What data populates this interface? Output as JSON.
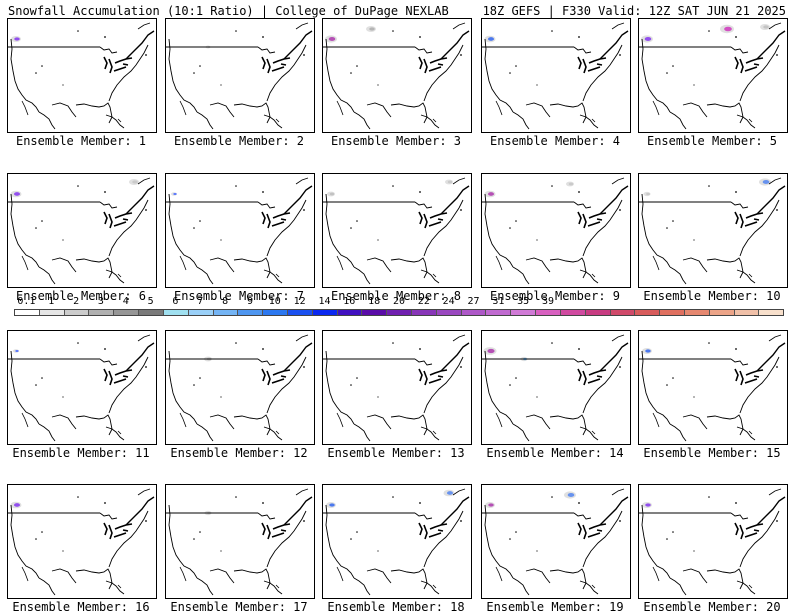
{
  "header": {
    "left": "Snowfall Accumulation (10:1 Ratio) | College of DuPage NEXLAB",
    "right": "18Z GEFS | F330 Valid: 12Z SAT JUN 21 2025"
  },
  "members": [
    {
      "label": "Ensemble Member: 1",
      "snow": [
        {
          "area": "pacific-northwest",
          "color": "#8a3ff0",
          "size": 1.0
        }
      ]
    },
    {
      "label": "Ensemble Member: 2",
      "snow": [
        {
          "area": "northern-rockies",
          "color": "#c8c8c8",
          "size": 0.5
        }
      ]
    },
    {
      "label": "Ensemble Member: 3",
      "snow": [
        {
          "area": "pacific-northwest",
          "color": "#b040b0",
          "size": 1.2
        },
        {
          "area": "canada-west",
          "color": "#b0b0b0",
          "size": 1.0
        }
      ]
    },
    {
      "label": "Ensemble Member: 4",
      "snow": [
        {
          "area": "pacific-northwest",
          "color": "#3c6ef0",
          "size": 1.1
        }
      ]
    },
    {
      "label": "Ensemble Member: 5",
      "snow": [
        {
          "area": "pacific-northwest",
          "color": "#8a3ff0",
          "size": 1.2
        },
        {
          "area": "canada-central",
          "color": "#d040c0",
          "size": 1.4
        },
        {
          "area": "canada-east",
          "color": "#c0c0c0",
          "size": 1.0
        }
      ]
    },
    {
      "label": "Ensemble Member: 6",
      "snow": [
        {
          "area": "pacific-northwest",
          "color": "#8a3ff0",
          "size": 1.1
        },
        {
          "area": "canada-east",
          "color": "#c8c8c8",
          "size": 1.0
        }
      ]
    },
    {
      "label": "Ensemble Member: 7",
      "snow": [
        {
          "area": "pacific-northwest",
          "color": "#4466ff",
          "size": 0.6
        }
      ]
    },
    {
      "label": "Ensemble Member: 8",
      "snow": [
        {
          "area": "pacific-northwest",
          "color": "#bfbfbf",
          "size": 0.8
        },
        {
          "area": "canada-east",
          "color": "#c8c8c8",
          "size": 0.8
        }
      ]
    },
    {
      "label": "Ensemble Member: 9",
      "snow": [
        {
          "area": "pacific-northwest",
          "color": "#b040b0",
          "size": 1.1
        },
        {
          "area": "canada-central",
          "color": "#c8c8c8",
          "size": 0.8
        }
      ]
    },
    {
      "label": "Ensemble Member: 10",
      "snow": [
        {
          "area": "canada-east",
          "color": "#5a8af0",
          "size": 1.2
        },
        {
          "area": "pacific-northwest",
          "color": "#c8c8c8",
          "size": 0.7
        }
      ]
    },
    {
      "label": "Ensemble Member: 11",
      "snow": [
        {
          "area": "pacific-northwest",
          "color": "#4466ff",
          "size": 0.6
        }
      ]
    },
    {
      "label": "Ensemble Member: 12",
      "snow": [
        {
          "area": "northern-rockies",
          "color": "#bfbfbf",
          "size": 0.8
        }
      ]
    },
    {
      "label": "Ensemble Member: 13",
      "snow": []
    },
    {
      "label": "Ensemble Member: 14",
      "snow": [
        {
          "area": "pacific-northwest",
          "color": "#b040b0",
          "size": 1.3
        },
        {
          "area": "northern-rockies",
          "color": "#60b0f0",
          "size": 0.7
        }
      ]
    },
    {
      "label": "Ensemble Member: 15",
      "snow": [
        {
          "area": "pacific-northwest",
          "color": "#3c6ef0",
          "size": 1.0
        }
      ]
    },
    {
      "label": "Ensemble Member: 16",
      "snow": [
        {
          "area": "pacific-northwest",
          "color": "#8a3ff0",
          "size": 1.1
        }
      ]
    },
    {
      "label": "Ensemble Member: 17",
      "snow": [
        {
          "area": "northern-rockies",
          "color": "#c8c8c8",
          "size": 0.7
        }
      ]
    },
    {
      "label": "Ensemble Member: 18",
      "snow": [
        {
          "area": "pacific-northwest",
          "color": "#3c6ef0",
          "size": 1.0
        },
        {
          "area": "canada-east",
          "color": "#5a8af0",
          "size": 1.1
        }
      ]
    },
    {
      "label": "Ensemble Member: 19",
      "snow": [
        {
          "area": "pacific-northwest",
          "color": "#b040b0",
          "size": 1.0
        },
        {
          "area": "canada-central",
          "color": "#5a8af0",
          "size": 1.2
        }
      ]
    },
    {
      "label": "Ensemble Member: 20",
      "snow": [
        {
          "area": "pacific-northwest",
          "color": "#8a3ff0",
          "size": 1.0
        }
      ]
    }
  ],
  "colorbar": {
    "colors": [
      "#ffffff",
      "#e6e6e6",
      "#cccccc",
      "#b0b0b0",
      "#969696",
      "#7a7a7a",
      "#a0e0f0",
      "#9ad0f8",
      "#74b4f4",
      "#4e96f0",
      "#2c78f0",
      "#1a50f0",
      "#0a28f0",
      "#4010c0",
      "#5a0ca8",
      "#7020b0",
      "#8836b8",
      "#9a48c0",
      "#ae58c8",
      "#c06ad0",
      "#d07ad6",
      "#d860c0",
      "#d04aa0",
      "#c83c82",
      "#d04a6a",
      "#d85c5c",
      "#e07060",
      "#e68870",
      "#eca488",
      "#f0c0a8",
      "#f8e0cc"
    ],
    "labels": [
      {
        "text": "0.1",
        "index": 1
      },
      {
        "text": "1",
        "index": 3
      },
      {
        "text": "2",
        "index": 5
      },
      {
        "text": "3",
        "index": 7
      },
      {
        "text": "4",
        "index": 9
      },
      {
        "text": "5",
        "index": 11
      },
      {
        "text": "6",
        "index": 13
      },
      {
        "text": "7",
        "index": 15
      },
      {
        "text": "8",
        "index": 17
      },
      {
        "text": "9",
        "index": 19
      },
      {
        "text": "10",
        "index": 21
      },
      {
        "text": "12",
        "index": 23
      },
      {
        "text": "14",
        "index": 25
      },
      {
        "text": "16",
        "index": 27
      },
      {
        "text": "18",
        "index": 29
      },
      {
        "text": "20",
        "index": 31
      },
      {
        "text": "22",
        "index": 33
      },
      {
        "text": "24",
        "index": 35
      },
      {
        "text": "27",
        "index": 37
      },
      {
        "text": "31",
        "index": 39
      },
      {
        "text": "35",
        "index": 41
      },
      {
        "text": "39",
        "index": 43
      }
    ]
  }
}
